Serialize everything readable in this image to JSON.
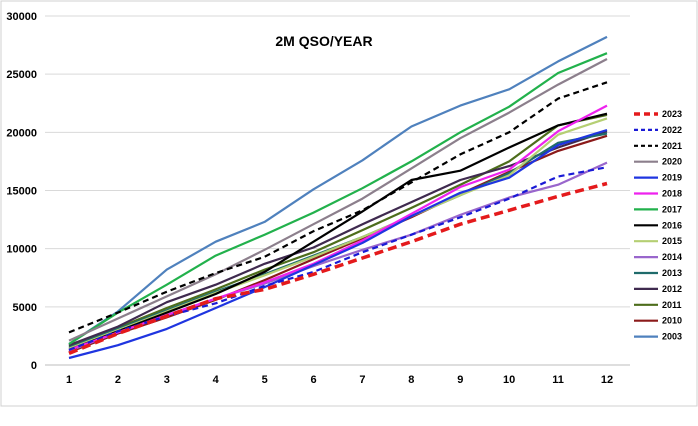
{
  "chart_data": {
    "type": "line",
    "title": "2M QSO/YEAR",
    "xlabel": "",
    "ylabel": "",
    "x": [
      1,
      2,
      3,
      4,
      5,
      6,
      7,
      8,
      9,
      10,
      11,
      12
    ],
    "x_tick_labels": [
      "1",
      "2",
      "3",
      "4",
      "5",
      "6",
      "7",
      "8",
      "9",
      "10",
      "11",
      "12"
    ],
    "ylim": [
      0,
      30000
    ],
    "y_tick_labels": [
      "0",
      "5000",
      "10000",
      "15000",
      "20000",
      "25000",
      "30000"
    ],
    "grid": "horizontal",
    "legend_position": "right",
    "series": [
      {
        "name": "2023",
        "color": "#e41a1c",
        "dash": "dash-thick",
        "values": [
          1000,
          2700,
          4200,
          5700,
          6500,
          7800,
          9200,
          10600,
          12100,
          13300,
          14500,
          15600
        ]
      },
      {
        "name": "2022",
        "color": "#1a1ad6",
        "dash": "dash",
        "values": [
          1300,
          2900,
          4200,
          5300,
          6800,
          8000,
          9700,
          11200,
          12700,
          14300,
          16200,
          17000
        ]
      },
      {
        "name": "2021",
        "color": "#000000",
        "dash": "dash",
        "values": [
          2800,
          4500,
          6300,
          7900,
          9300,
          11500,
          13300,
          15700,
          18100,
          20000,
          22900,
          24300
        ]
      },
      {
        "name": "2020",
        "color": "#8c7f8c",
        "dash": "solid",
        "values": [
          2100,
          4000,
          5900,
          7800,
          9900,
          12100,
          14300,
          16900,
          19500,
          21700,
          24100,
          26300
        ]
      },
      {
        "name": "2019",
        "color": "#1f35e0",
        "dash": "solid",
        "values": [
          600,
          1700,
          3100,
          4900,
          6700,
          8600,
          10500,
          12800,
          14800,
          16100,
          18900,
          20200
        ]
      },
      {
        "name": "2018",
        "color": "#ee22ee",
        "dash": "solid",
        "values": [
          1300,
          2800,
          4300,
          5700,
          7100,
          8700,
          10700,
          13000,
          15300,
          16800,
          20100,
          22300
        ]
      },
      {
        "name": "2017",
        "color": "#22b14c",
        "dash": "solid",
        "values": [
          1800,
          4500,
          6900,
          9400,
          11200,
          13100,
          15200,
          17500,
          20000,
          22200,
          25100,
          26800
        ]
      },
      {
        "name": "2016",
        "color": "#000000",
        "dash": "solid",
        "values": [
          1300,
          2900,
          4500,
          6100,
          8000,
          10600,
          13200,
          15900,
          16700,
          18700,
          20600,
          21600
        ]
      },
      {
        "name": "2015",
        "color": "#b5cf73",
        "dash": "solid",
        "values": [
          1400,
          3000,
          4600,
          6200,
          7700,
          9300,
          11000,
          12800,
          14600,
          16300,
          19800,
          21200
        ]
      },
      {
        "name": "2014",
        "color": "#9966cc",
        "dash": "solid",
        "values": [
          1200,
          2800,
          4300,
          5700,
          7000,
          8500,
          9900,
          11200,
          12900,
          14400,
          15500,
          17400
        ]
      },
      {
        "name": "2013",
        "color": "#1f6b6b",
        "dash": "solid",
        "values": [
          1500,
          3100,
          4700,
          6300,
          7800,
          9400,
          11000,
          12800,
          14600,
          16500,
          19100,
          19900
        ]
      },
      {
        "name": "2012",
        "color": "#3f2a4f",
        "dash": "solid",
        "values": [
          1700,
          3300,
          5400,
          6900,
          8700,
          10100,
          12100,
          14000,
          15900,
          17100,
          18700,
          20100
        ]
      },
      {
        "name": "2011",
        "color": "#4d6d1c",
        "dash": "solid",
        "values": [
          1600,
          3200,
          4900,
          6500,
          8200,
          9700,
          11600,
          13500,
          15500,
          17500,
          20600,
          21500
        ]
      },
      {
        "name": "2010",
        "color": "#8b1a1a",
        "dash": "solid",
        "values": [
          1100,
          2700,
          4100,
          5600,
          7300,
          9100,
          10900,
          12700,
          14700,
          16600,
          18400,
          19700
        ]
      },
      {
        "name": "2003",
        "color": "#4f81bd",
        "dash": "solid",
        "values": [
          1800,
          4600,
          8200,
          10600,
          12300,
          15100,
          17600,
          20500,
          22300,
          23700,
          26100,
          28200
        ]
      }
    ]
  }
}
